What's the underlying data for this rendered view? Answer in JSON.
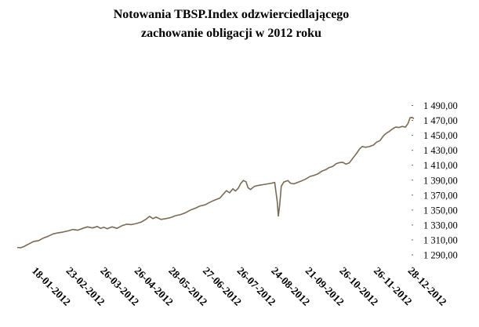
{
  "chart_data": {
    "type": "line",
    "title_lines": [
      "Notowania TBSP.Index odzwierciedlającego",
      "zachowanie obligacji w 2012 roku"
    ],
    "xlabel": "",
    "ylabel": "",
    "ylim": [
      1290,
      1490
    ],
    "x_tick_labels": [
      "18-01-2012",
      "23-02-2012",
      "26-03-2012",
      "26-04-2012",
      "28-05-2012",
      "27-06-2012",
      "26-07-2012",
      "24-08-2012",
      "21-09-2012",
      "26-10-2012",
      "26-11-2012",
      "28-12-2012"
    ],
    "y_tick_labels": [
      "1 490,00",
      "1 470,00",
      "1 450,00",
      "1 430,00",
      "1 410,00",
      "1 390,00",
      "1 370,00",
      "1 350,00",
      "1 330,00",
      "1 310,00",
      "1 290,00"
    ],
    "y_tick_values": [
      1490,
      1470,
      1450,
      1430,
      1410,
      1390,
      1370,
      1350,
      1330,
      1310,
      1290
    ],
    "series_color": "#7a6a55",
    "grid": false,
    "legend": "none",
    "series": [
      {
        "values": [
          [
            0.0,
            1300.0
          ],
          [
            0.01,
            1299.5
          ],
          [
            0.02,
            1301.0
          ],
          [
            0.035,
            1304.5
          ],
          [
            0.05,
            1308.0
          ],
          [
            0.065,
            1309.0
          ],
          [
            0.08,
            1312.5
          ],
          [
            0.095,
            1315.0
          ],
          [
            0.11,
            1318.0
          ],
          [
            0.125,
            1319.5
          ],
          [
            0.14,
            1320.5
          ],
          [
            0.155,
            1322.0
          ],
          [
            0.17,
            1324.0
          ],
          [
            0.185,
            1323.0
          ],
          [
            0.2,
            1325.5
          ],
          [
            0.215,
            1327.5
          ],
          [
            0.23,
            1326.0
          ],
          [
            0.245,
            1328.0
          ],
          [
            0.255,
            1325.5
          ],
          [
            0.265,
            1327.0
          ],
          [
            0.275,
            1325.0
          ],
          [
            0.29,
            1327.5
          ],
          [
            0.305,
            1325.5
          ],
          [
            0.32,
            1329.0
          ],
          [
            0.335,
            1331.0
          ],
          [
            0.35,
            1330.5
          ],
          [
            0.365,
            1332.0
          ],
          [
            0.38,
            1334.0
          ],
          [
            0.395,
            1338.0
          ],
          [
            0.405,
            1341.5
          ],
          [
            0.415,
            1338.5
          ],
          [
            0.425,
            1340.5
          ],
          [
            0.44,
            1337.5
          ],
          [
            0.455,
            1338.5
          ],
          [
            0.47,
            1340.0
          ],
          [
            0.485,
            1342.5
          ],
          [
            0.5,
            1344.0
          ],
          [
            0.515,
            1346.5
          ],
          [
            0.53,
            1350.0
          ],
          [
            0.545,
            1352.5
          ],
          [
            0.56,
            1355.5
          ],
          [
            0.575,
            1357.0
          ],
          [
            0.59,
            1360.5
          ],
          [
            0.605,
            1363.5
          ],
          [
            0.62,
            1366.0
          ],
          [
            0.63,
            1371.0
          ],
          [
            0.64,
            1376.0
          ],
          [
            0.65,
            1373.0
          ],
          [
            0.66,
            1378.5
          ],
          [
            0.668,
            1375.5
          ],
          [
            0.676,
            1379.0
          ],
          [
            0.684,
            1385.5
          ],
          [
            0.692,
            1389.5
          ],
          [
            0.7,
            1388.0
          ],
          [
            0.706,
            1380.0
          ],
          [
            0.714,
            1377.5
          ],
          [
            0.725,
            1381.5
          ],
          [
            0.738,
            1383.0
          ],
          [
            0.752,
            1384.0
          ],
          [
            0.766,
            1385.0
          ],
          [
            0.778,
            1386.0
          ],
          [
            0.788,
            1387.0
          ],
          [
            0.796,
            1360.0
          ],
          [
            0.799,
            1342.0
          ],
          [
            0.803,
            1356.0
          ],
          [
            0.808,
            1382.0
          ],
          [
            0.816,
            1387.5
          ],
          [
            0.828,
            1389.5
          ],
          [
            0.836,
            1386.0
          ],
          [
            0.846,
            1385.0
          ],
          [
            0.858,
            1387.0
          ],
          [
            0.87,
            1389.0
          ],
          [
            0.883,
            1391.5
          ],
          [
            0.896,
            1395.0
          ],
          [
            0.908,
            1396.5
          ],
          [
            0.92,
            1398.5
          ],
          [
            0.932,
            1402.0
          ],
          [
            0.944,
            1404.0
          ],
          [
            0.955,
            1407.0
          ],
          [
            0.966,
            1408.5
          ],
          [
            0.976,
            1412.0
          ],
          [
            0.986,
            1413.5
          ],
          [
            0.996,
            1414.0
          ],
          [
            1.006,
            1411.5
          ],
          [
            1.016,
            1413.0
          ],
          [
            1.028,
            1420.0
          ],
          [
            1.038,
            1425.5
          ],
          [
            1.048,
            1432.0
          ],
          [
            1.056,
            1435.0
          ],
          [
            1.066,
            1434.0
          ],
          [
            1.078,
            1435.0
          ],
          [
            1.09,
            1437.0
          ],
          [
            1.1,
            1441.0
          ],
          [
            1.11,
            1443.0
          ],
          [
            1.12,
            1449.0
          ],
          [
            1.13,
            1453.0
          ],
          [
            1.138,
            1455.0
          ],
          [
            1.148,
            1458.5
          ],
          [
            1.158,
            1461.0
          ],
          [
            1.168,
            1460.5
          ],
          [
            1.178,
            1462.0
          ],
          [
            1.188,
            1461.0
          ],
          [
            1.196,
            1466.0
          ],
          [
            1.202,
            1473.5
          ],
          [
            1.208,
            1474.0
          ],
          [
            1.214,
            1472.5
          ]
        ]
      }
    ]
  }
}
